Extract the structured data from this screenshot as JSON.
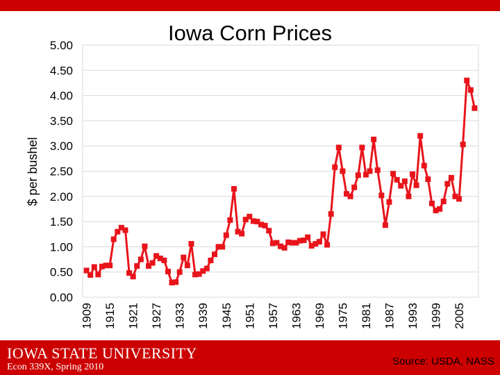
{
  "colors": {
    "bar": "#cc0000",
    "series": "#e8141b",
    "grid": "#d9d9d9",
    "text": "#000000",
    "footer_text": "#ffffff"
  },
  "footer": {
    "logo_text": "IOWA STATE UNIVERSITY",
    "course": "Econ 339X, Spring 2010",
    "source": "Source: USDA, NASS"
  },
  "chart_data": {
    "type": "line",
    "title": "Iowa Corn Prices",
    "xlabel": "",
    "ylabel": "$ per bushel",
    "ylim": [
      0,
      5
    ],
    "yticks": [
      "5.00",
      "4.50",
      "4.00",
      "3.50",
      "3.00",
      "2.50",
      "2.00",
      "1.50",
      "1.00",
      "0.50",
      "0.00"
    ],
    "xticks": [
      "1909",
      "1915",
      "1921",
      "1927",
      "1933",
      "1939",
      "1945",
      "1951",
      "1957",
      "1963",
      "1969",
      "1975",
      "1981",
      "1987",
      "1993",
      "1999",
      "2005"
    ],
    "grid": true,
    "marker": "square",
    "series": [
      {
        "name": "Iowa Corn Price",
        "x": [
          1909,
          1910,
          1911,
          1912,
          1913,
          1914,
          1915,
          1916,
          1917,
          1918,
          1919,
          1920,
          1921,
          1922,
          1923,
          1924,
          1925,
          1926,
          1927,
          1928,
          1929,
          1930,
          1931,
          1932,
          1933,
          1934,
          1935,
          1936,
          1937,
          1938,
          1939,
          1940,
          1941,
          1942,
          1943,
          1944,
          1945,
          1946,
          1947,
          1948,
          1949,
          1950,
          1951,
          1952,
          1953,
          1954,
          1955,
          1956,
          1957,
          1958,
          1959,
          1960,
          1961,
          1962,
          1963,
          1964,
          1965,
          1966,
          1967,
          1968,
          1969,
          1970,
          1971,
          1972,
          1973,
          1974,
          1975,
          1976,
          1977,
          1978,
          1979,
          1980,
          1981,
          1982,
          1983,
          1984,
          1985,
          1986,
          1987,
          1988,
          1989,
          1990,
          1991,
          1992,
          1993,
          1994,
          1995,
          1996,
          1997,
          1998,
          1999,
          2000,
          2001,
          2002,
          2003,
          2004,
          2005,
          2006,
          2007,
          2008,
          2009
        ],
        "values": [
          0.53,
          0.44,
          0.6,
          0.45,
          0.61,
          0.63,
          0.63,
          1.15,
          1.3,
          1.38,
          1.33,
          0.48,
          0.41,
          0.62,
          0.75,
          1.01,
          0.62,
          0.68,
          0.82,
          0.77,
          0.73,
          0.51,
          0.29,
          0.3,
          0.5,
          0.79,
          0.63,
          1.06,
          0.45,
          0.46,
          0.52,
          0.57,
          0.73,
          0.85,
          1.0,
          1.0,
          1.23,
          1.53,
          2.15,
          1.3,
          1.26,
          1.54,
          1.6,
          1.51,
          1.5,
          1.44,
          1.42,
          1.32,
          1.07,
          1.08,
          1.01,
          0.98,
          1.09,
          1.08,
          1.08,
          1.12,
          1.13,
          1.19,
          1.02,
          1.06,
          1.1,
          1.25,
          1.04,
          1.65,
          2.58,
          2.97,
          2.5,
          2.05,
          2.0,
          2.18,
          2.42,
          2.97,
          2.43,
          2.5,
          3.13,
          2.52,
          2.02,
          1.43,
          1.89,
          2.45,
          2.33,
          2.21,
          2.3,
          2.0,
          2.44,
          2.22,
          3.2,
          2.61,
          2.34,
          1.86,
          1.72,
          1.75,
          1.9,
          2.25,
          2.37,
          2.0,
          1.95,
          3.03,
          4.3,
          4.11,
          3.75
        ]
      }
    ]
  }
}
